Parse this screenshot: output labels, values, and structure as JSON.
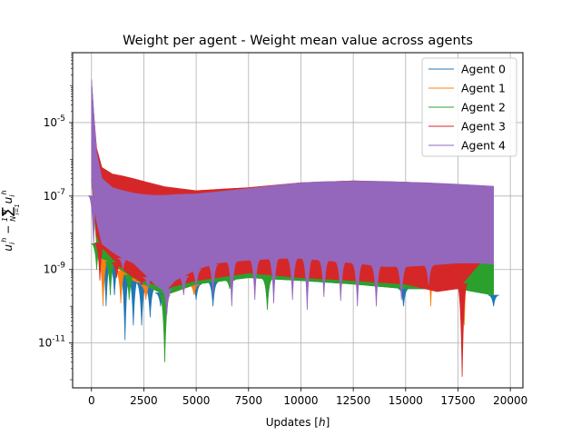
{
  "chart_data": {
    "type": "area",
    "title": "Weight per agent - Weight mean value across agents",
    "xlabel": "Updates [h]",
    "ylabel": "u_i^h - (1/N) Σ_{i=1}^N u_i^h",
    "yscale": "log",
    "xlim": [
      -900,
      20600
    ],
    "ylim": [
      6e-13,
      0.0008
    ],
    "xticks": [
      0,
      2500,
      5000,
      7500,
      10000,
      12500,
      15000,
      17500,
      20000
    ],
    "xtick_labels": [
      "0",
      "2500",
      "5000",
      "7500",
      "10000",
      "12500",
      "15000",
      "17500",
      "20000"
    ],
    "yticks": [
      1e-11,
      1e-09,
      1e-07,
      1e-05
    ],
    "ytick_labels": [
      "10^-11",
      "10^-9",
      "10^-7",
      "10^-5"
    ],
    "grid": true,
    "legend_position": "upper-right",
    "series": [
      {
        "name": "Agent 0",
        "color": "#1f77b4",
        "x": [
          0,
          250,
          500,
          1000,
          1500,
          2000,
          2500,
          3500,
          5000,
          7500,
          10000,
          12500,
          15000,
          17500,
          19200
        ],
        "upper": [
          0.00015,
          1e-06,
          4e-07,
          2.5e-07,
          2e-07,
          1.6e-07,
          1.4e-07,
          1.3e-07,
          1.3e-07,
          1.6e-07,
          2.2e-07,
          2.5e-07,
          2.3e-07,
          2e-07,
          1.7e-07
        ],
        "lower": [
          3e-07,
          5e-09,
          2e-09,
          1.5e-09,
          1e-09,
          6e-10,
          4e-10,
          2e-10,
          4e-10,
          6e-10,
          5e-10,
          4e-10,
          3e-10,
          3e-10,
          2e-10
        ],
        "dips": [
          [
            700,
            1e-10
          ],
          [
            1100,
            2e-10
          ],
          [
            1600,
            1.2e-11
          ],
          [
            2000,
            3e-11
          ],
          [
            2400,
            3e-11
          ],
          [
            2800,
            5e-11
          ],
          [
            3300,
            1e-10
          ],
          [
            5000,
            1.5e-10
          ],
          [
            5800,
            1e-10
          ],
          [
            8400,
            1e-10
          ],
          [
            14900,
            1e-10
          ],
          [
            19200,
            1e-10
          ]
        ]
      },
      {
        "name": "Agent 1",
        "color": "#ff7f0e",
        "x": [
          0,
          250,
          500,
          1000,
          1500,
          2000,
          2500,
          3500,
          5000,
          7500,
          10000,
          12500,
          15000,
          16500,
          17500,
          19200
        ],
        "upper": [
          0.00012,
          1e-06,
          4e-07,
          3e-07,
          2.5e-07,
          2e-07,
          1.7e-07,
          1.5e-07,
          1.4e-07,
          1.7e-07,
          2.3e-07,
          2.6e-07,
          2.4e-07,
          2.2e-07,
          2e-07,
          1.8e-07
        ],
        "lower": [
          3e-07,
          4e-09,
          2e-09,
          1.5e-09,
          8e-10,
          5e-10,
          4e-10,
          2e-10,
          4e-10,
          7e-10,
          6e-10,
          6e-10,
          4e-10,
          2e-09,
          1.5e-09,
          1.2e-09
        ],
        "dips": [
          [
            550,
            1e-10
          ],
          [
            1400,
            1.2e-10
          ],
          [
            2600,
            1.5e-10
          ],
          [
            4900,
            2e-10
          ],
          [
            12900,
            5e-10
          ],
          [
            14200,
            6e-10
          ],
          [
            16200,
            1e-10
          ],
          [
            17800,
            3e-11
          ]
        ]
      },
      {
        "name": "Agent 2",
        "color": "#2ca02c",
        "x": [
          0,
          250,
          500,
          1000,
          1500,
          2000,
          2500,
          3500,
          5000,
          7500,
          10000,
          12500,
          15000,
          17500,
          19200
        ],
        "upper": [
          0.00014,
          1e-06,
          4e-07,
          2.8e-07,
          2.2e-07,
          1.8e-07,
          1.5e-07,
          1.4e-07,
          1.3e-07,
          1.6e-07,
          2.2e-07,
          2.5e-07,
          2.3e-07,
          2e-07,
          1.7e-07
        ],
        "lower": [
          3e-07,
          5e-09,
          2e-09,
          1.5e-09,
          9e-10,
          6e-10,
          4e-10,
          2e-10,
          4e-10,
          6e-10,
          5e-10,
          4e-10,
          3e-10,
          3e-10,
          2e-10
        ],
        "dips": [
          [
            250,
            1e-09
          ],
          [
            900,
            2e-10
          ],
          [
            1800,
            1.5e-10
          ],
          [
            3500,
            3e-12
          ],
          [
            6600,
            3e-10
          ],
          [
            8400,
            8e-11
          ]
        ]
      },
      {
        "name": "Agent 3",
        "color": "#d62728",
        "x": [
          0,
          250,
          500,
          1000,
          1500,
          2000,
          2500,
          3500,
          5000,
          7500,
          10000,
          12500,
          15000,
          16500,
          17500,
          19200
        ],
        "upper": [
          8e-05,
          2e-06,
          6e-07,
          4e-07,
          3.5e-07,
          3e-07,
          2.5e-07,
          1.8e-07,
          1.4e-07,
          1.7e-07,
          2.3e-07,
          2.6e-07,
          2.4e-07,
          2.2e-07,
          2e-07,
          1.8e-07
        ],
        "lower": [
          3e-07,
          8e-09,
          4e-09,
          2e-09,
          1e-09,
          6e-10,
          5e-10,
          3e-10,
          5e-10,
          8e-10,
          6e-10,
          5e-10,
          4e-10,
          2.5e-10,
          3e-10,
          4e-09
        ],
        "dips": [
          [
            400,
            5e-10
          ],
          [
            1200,
            6e-10
          ],
          [
            2400,
            4e-10
          ],
          [
            17700,
            1.2e-12
          ]
        ]
      },
      {
        "name": "Agent 4",
        "color": "#9467bd",
        "x": [
          0,
          250,
          500,
          1000,
          1500,
          2000,
          2500,
          3000,
          3500,
          4000,
          5000,
          6000,
          7500,
          9000,
          10000,
          11000,
          12500,
          14000,
          15000,
          16000,
          17500,
          18500,
          19200
        ],
        "upper": [
          0.00014,
          1.5e-06,
          3e-07,
          1.7e-07,
          1.4e-07,
          1.2e-07,
          1.1e-07,
          1.05e-07,
          1.05e-07,
          1.1e-07,
          1.15e-07,
          1.3e-07,
          1.6e-07,
          2e-07,
          2.3e-07,
          2.45e-07,
          2.55e-07,
          2.5e-07,
          2.4e-07,
          2.3e-07,
          2.1e-07,
          1.95e-07,
          1.85e-07
        ],
        "lower": [
          3e-07,
          2e-08,
          5e-09,
          3e-09,
          2e-09,
          1.5e-09,
          8e-10,
          4e-10,
          2.5e-10,
          5e-10,
          1e-09,
          1.5e-09,
          1.8e-09,
          2e-09,
          2e-09,
          1.8e-09,
          1.5e-09,
          1.2e-09,
          1.2e-09,
          1.3e-09,
          1.5e-09,
          1.5e-09,
          1.4e-09
        ],
        "dips": [
          [
            100,
            5e-09
          ],
          [
            1500,
            1e-09
          ],
          [
            2700,
            3e-10
          ],
          [
            3600,
            6e-11
          ],
          [
            4400,
            2e-10
          ],
          [
            5000,
            3e-10
          ],
          [
            5800,
            2e-10
          ],
          [
            6700,
            1e-10
          ],
          [
            7800,
            1.5e-10
          ],
          [
            8700,
            1.2e-10
          ],
          [
            9600,
            1.5e-10
          ],
          [
            10300,
            8e-11
          ],
          [
            11100,
            1.8e-10
          ],
          [
            11900,
            1.4e-10
          ],
          [
            12700,
            1e-10
          ],
          [
            13600,
            1e-10
          ],
          [
            14800,
            1.5e-10
          ],
          [
            16100,
            4e-10
          ]
        ]
      }
    ]
  }
}
